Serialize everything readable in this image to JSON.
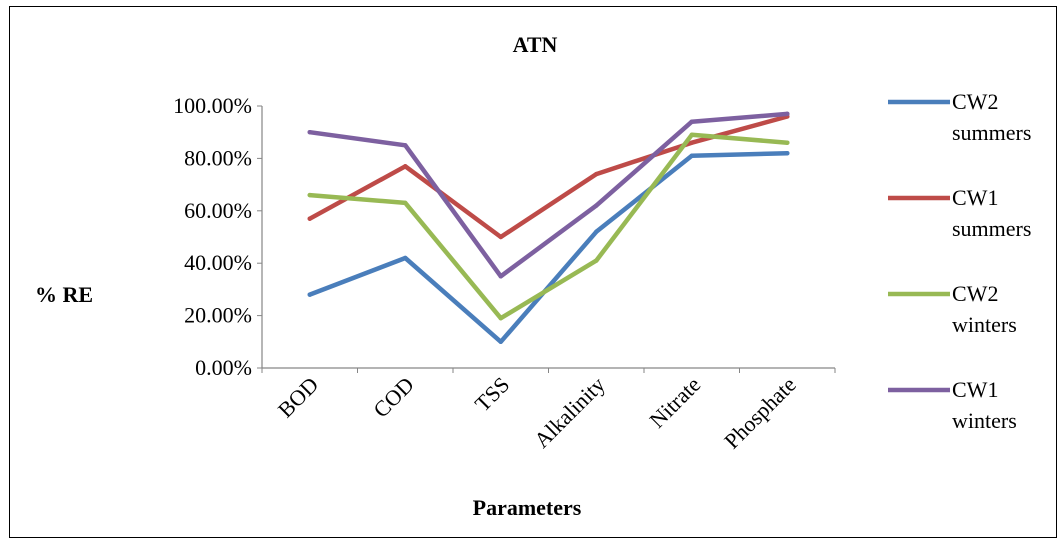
{
  "chart_data": {
    "type": "line",
    "title": "ATN",
    "xlabel": "Parameters",
    "ylabel": "% RE",
    "categories": [
      "BOD",
      "COD",
      "TSS",
      "Alkalinity",
      "Nitrate",
      "Phosphate"
    ],
    "ylim": [
      0,
      1
    ],
    "yticks": [
      0,
      0.2,
      0.4,
      0.6,
      0.8,
      1.0
    ],
    "ytick_labels": [
      "0.00%",
      "20.00%",
      "40.00%",
      "60.00%",
      "80.00%",
      "100.00%"
    ],
    "grid": false,
    "legend_position": "right",
    "series": [
      {
        "name": "CW2 summers",
        "legend_lines": [
          "CW2",
          "summers"
        ],
        "color": "#4a7ebb",
        "values": [
          0.28,
          0.42,
          0.1,
          0.52,
          0.81,
          0.82
        ]
      },
      {
        "name": "CW1 summers",
        "legend_lines": [
          "CW1",
          "summers"
        ],
        "color": "#be4b48",
        "values": [
          0.57,
          0.77,
          0.5,
          0.74,
          0.86,
          0.96
        ]
      },
      {
        "name": "CW2 winters",
        "legend_lines": [
          "CW2",
          "winters"
        ],
        "color": "#98b954",
        "values": [
          0.66,
          0.63,
          0.19,
          0.41,
          0.89,
          0.86
        ]
      },
      {
        "name": "CW1 winters",
        "legend_lines": [
          "CW1",
          "winters"
        ],
        "color": "#7d60a0",
        "values": [
          0.9,
          0.85,
          0.35,
          0.62,
          0.94,
          0.97
        ]
      }
    ]
  }
}
